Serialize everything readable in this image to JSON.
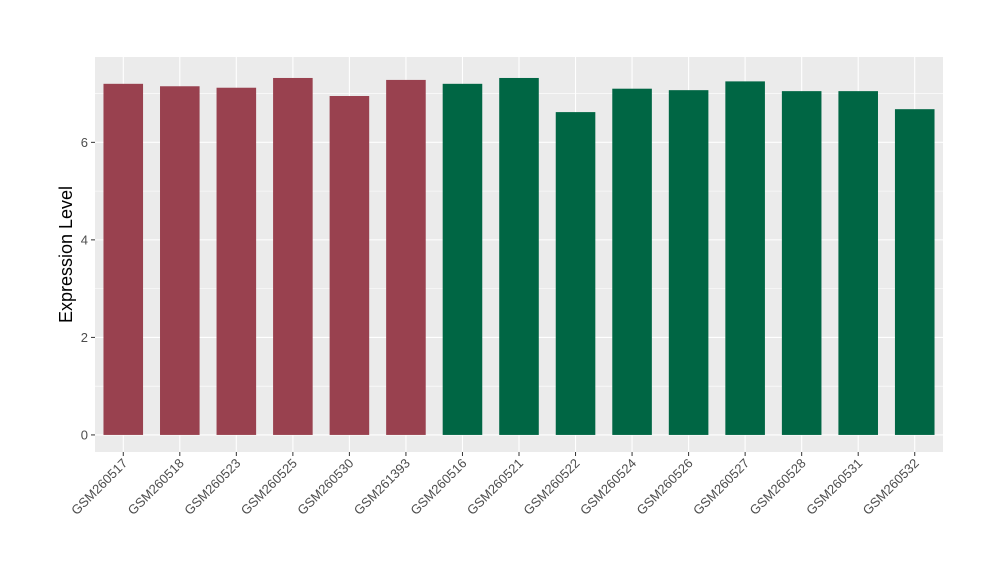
{
  "chart_data": {
    "type": "bar",
    "title": "",
    "xlabel": "",
    "ylabel": "Expression Level",
    "ylim": [
      -0.35,
      7.75
    ],
    "yticks": [
      0,
      2,
      4,
      6
    ],
    "grid": true,
    "categories": [
      "GSM260517",
      "GSM260518",
      "GSM260523",
      "GSM260525",
      "GSM260530",
      "GSM261393",
      "GSM260516",
      "GSM260521",
      "GSM260522",
      "GSM260524",
      "GSM260526",
      "GSM260527",
      "GSM260528",
      "GSM260531",
      "GSM260532"
    ],
    "values": [
      7.2,
      7.15,
      7.12,
      7.32,
      6.95,
      7.28,
      7.2,
      7.32,
      6.62,
      7.1,
      7.07,
      7.25,
      7.05,
      7.05,
      6.68
    ],
    "colors": [
      "#99414f",
      "#99414f",
      "#99414f",
      "#99414f",
      "#99414f",
      "#99414f",
      "#006644",
      "#006644",
      "#006644",
      "#006644",
      "#006644",
      "#006644",
      "#006644",
      "#006644",
      "#006644"
    ],
    "panel_background": "#ebebeb",
    "grid_color": "#ffffff"
  }
}
